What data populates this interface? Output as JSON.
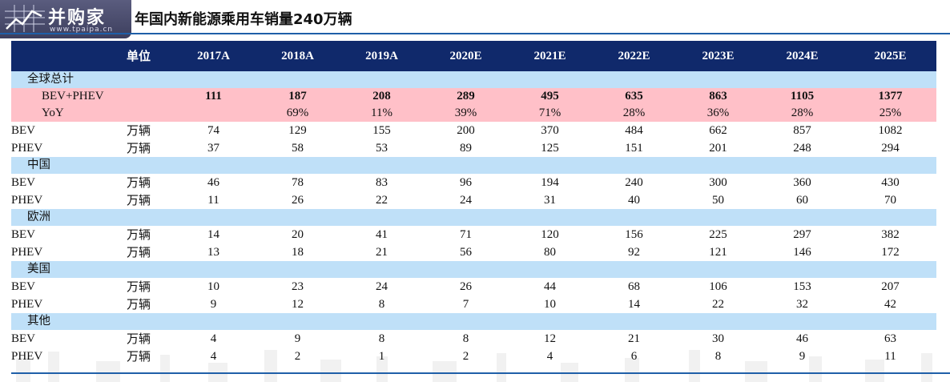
{
  "logo": {
    "text": "并购家",
    "url": "www.tpaipa.cn"
  },
  "title": "年国内新能源乘用车销量240万辆",
  "header": {
    "unit_label": "单位",
    "years": [
      "2017A",
      "2018A",
      "2019A",
      "2020E",
      "2021E",
      "2022E",
      "2023E",
      "2024E",
      "2025E"
    ]
  },
  "global": {
    "section": "全球总计",
    "total_label": "BEV+PHEV",
    "total": [
      "111",
      "187",
      "208",
      "289",
      "495",
      "635",
      "863",
      "1105",
      "1377"
    ],
    "yoy_label": "YoY",
    "yoy": [
      "",
      "69%",
      "11%",
      "39%",
      "71%",
      "28%",
      "36%",
      "28%",
      "25%"
    ],
    "rows": [
      {
        "label": "BEV",
        "unit": "万辆",
        "values": [
          "74",
          "129",
          "155",
          "200",
          "370",
          "484",
          "662",
          "857",
          "1082"
        ]
      },
      {
        "label": "PHEV",
        "unit": "万辆",
        "values": [
          "37",
          "58",
          "53",
          "89",
          "125",
          "151",
          "201",
          "248",
          "294"
        ]
      }
    ]
  },
  "regions": [
    {
      "name": "中国",
      "rows": [
        {
          "label": "BEV",
          "unit": "万辆",
          "values": [
            "46",
            "78",
            "83",
            "96",
            "194",
            "240",
            "300",
            "360",
            "430"
          ]
        },
        {
          "label": "PHEV",
          "unit": "万辆",
          "values": [
            "11",
            "26",
            "22",
            "24",
            "31",
            "40",
            "50",
            "60",
            "70"
          ]
        }
      ]
    },
    {
      "name": "欧洲",
      "rows": [
        {
          "label": "BEV",
          "unit": "万辆",
          "values": [
            "14",
            "20",
            "41",
            "71",
            "120",
            "156",
            "225",
            "297",
            "382"
          ]
        },
        {
          "label": "PHEV",
          "unit": "万辆",
          "values": [
            "13",
            "18",
            "21",
            "56",
            "80",
            "92",
            "121",
            "146",
            "172"
          ]
        }
      ]
    },
    {
      "name": "美国",
      "rows": [
        {
          "label": "BEV",
          "unit": "万辆",
          "values": [
            "10",
            "23",
            "24",
            "26",
            "44",
            "68",
            "106",
            "153",
            "207"
          ]
        },
        {
          "label": "PHEV",
          "unit": "万辆",
          "values": [
            "9",
            "12",
            "8",
            "7",
            "10",
            "14",
            "22",
            "32",
            "42"
          ]
        }
      ]
    },
    {
      "name": "其他",
      "rows": [
        {
          "label": "BEV",
          "unit": "万辆",
          "values": [
            "4",
            "9",
            "8",
            "8",
            "12",
            "21",
            "30",
            "46",
            "63"
          ]
        },
        {
          "label": "PHEV",
          "unit": "万辆",
          "values": [
            "4",
            "2",
            "1",
            "2",
            "4",
            "6",
            "8",
            "9",
            "11"
          ]
        }
      ]
    }
  ],
  "colors": {
    "header_bg": "#10296b",
    "section_bg": "#bfe0f8",
    "total_bg": "#ffc0c8",
    "rule": "#1f5fa8"
  }
}
